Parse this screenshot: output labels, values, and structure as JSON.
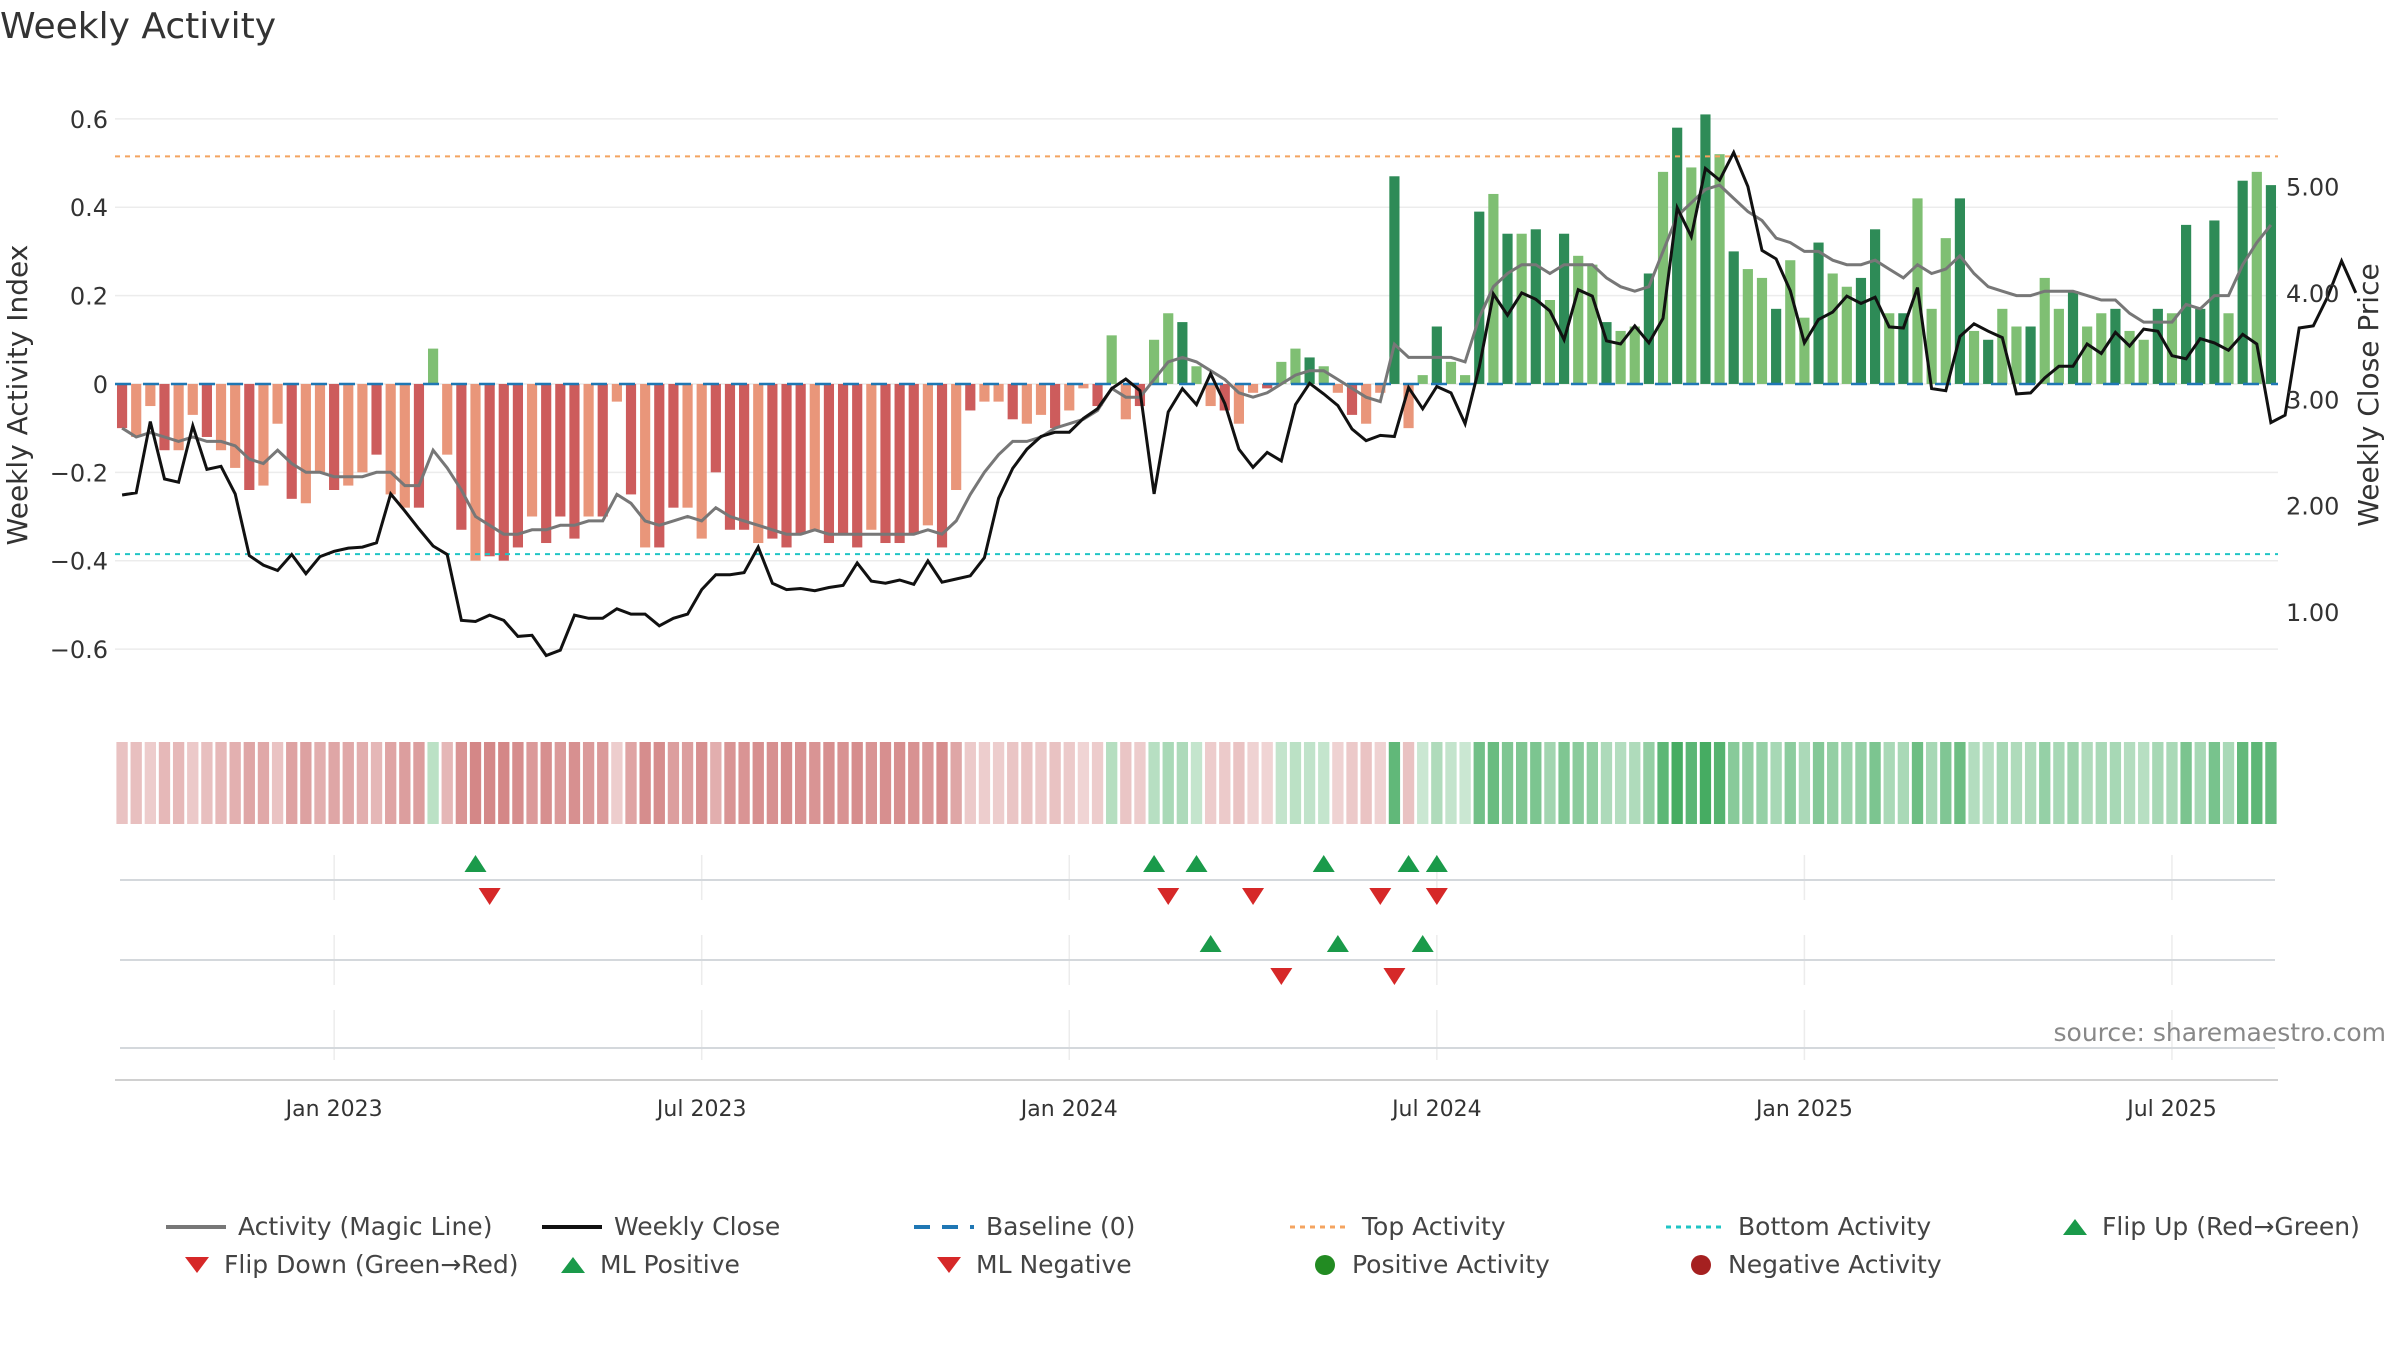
{
  "title": "Weekly Activity",
  "source_note": "source: sharemaestro.com",
  "chart_data": {
    "type": "bar",
    "title": "Weekly Activity",
    "ylabel": "Weekly Activity Index",
    "y2label": "Weekly Close Price",
    "ylim": [
      -0.67,
      0.62
    ],
    "y2lim": [
      0.36,
      5.72
    ],
    "y_ticks": [
      -0.6,
      -0.4,
      -0.2,
      0,
      0.2,
      0.4,
      0.6
    ],
    "y_tick_labels": [
      "−0.6",
      "−0.4",
      "−0.2",
      "0",
      "0.2",
      "0.4",
      "0.6"
    ],
    "y2_ticks": [
      1,
      2,
      3,
      4,
      5
    ],
    "y2_tick_labels": [
      "1.00",
      "2.00",
      "3.00",
      "4.00",
      "5.00"
    ],
    "x_ticks": [
      {
        "label": "Jan 2023",
        "week": 15
      },
      {
        "label": "Jul 2023",
        "week": 41
      },
      {
        "label": "Jan 2024",
        "week": 67
      },
      {
        "label": "Jul 2024",
        "week": 93
      },
      {
        "label": "Jan 2025",
        "week": 119
      },
      {
        "label": "Jul 2025",
        "week": 145
      }
    ],
    "top_activity": 0.515,
    "bottom_activity": -0.385,
    "activity": [
      -0.1,
      -0.12,
      -0.05,
      -0.15,
      -0.15,
      -0.07,
      -0.12,
      -0.15,
      -0.19,
      -0.24,
      -0.23,
      -0.09,
      -0.26,
      -0.27,
      -0.2,
      -0.24,
      -0.23,
      -0.2,
      -0.16,
      -0.25,
      -0.28,
      -0.28,
      0.08,
      -0.16,
      -0.33,
      -0.4,
      -0.39,
      -0.4,
      -0.37,
      -0.3,
      -0.36,
      -0.3,
      -0.35,
      -0.3,
      -0.3,
      -0.04,
      -0.25,
      -0.37,
      -0.37,
      -0.28,
      -0.28,
      -0.35,
      -0.2,
      -0.33,
      -0.33,
      -0.36,
      -0.35,
      -0.37,
      -0.34,
      -0.33,
      -0.36,
      -0.34,
      -0.37,
      -0.33,
      -0.36,
      -0.36,
      -0.34,
      -0.32,
      -0.37,
      -0.24,
      -0.06,
      -0.04,
      -0.04,
      -0.08,
      -0.09,
      -0.07,
      -0.1,
      -0.06,
      -0.01,
      -0.05,
      0.11,
      -0.08,
      -0.05,
      0.1,
      0.16,
      0.14,
      0.04,
      -0.05,
      -0.06,
      -0.09,
      -0.02,
      -0.01,
      0.05,
      0.08,
      0.06,
      0.04,
      -0.02,
      -0.07,
      -0.09,
      -0.02,
      0.47,
      -0.1,
      0.02,
      0.13,
      0.05,
      0.02,
      0.39,
      0.43,
      0.34,
      0.34,
      0.35,
      0.19,
      0.34,
      0.29,
      0.27,
      0.14,
      0.12,
      0.13,
      0.25,
      0.48,
      0.58,
      0.49,
      0.61,
      0.52,
      0.3,
      0.26,
      0.24,
      0.17,
      0.28,
      0.15,
      0.32,
      0.25,
      0.22,
      0.24,
      0.35,
      0.16,
      0.16,
      0.42,
      0.17,
      0.33,
      0.42,
      0.12,
      0.1,
      0.17,
      0.13,
      0.13,
      0.24,
      0.17,
      0.21,
      0.13,
      0.16,
      0.17,
      0.12,
      0.1,
      0.17,
      0.16,
      0.36,
      0.17,
      0.37,
      0.16,
      0.46,
      0.48,
      0.45
    ],
    "magic_line": [
      -0.1,
      -0.12,
      -0.11,
      -0.12,
      -0.13,
      -0.12,
      -0.13,
      -0.13,
      -0.14,
      -0.17,
      -0.18,
      -0.15,
      -0.18,
      -0.2,
      -0.2,
      -0.21,
      -0.21,
      -0.21,
      -0.2,
      -0.2,
      -0.23,
      -0.23,
      -0.15,
      -0.19,
      -0.24,
      -0.3,
      -0.32,
      -0.34,
      -0.34,
      -0.33,
      -0.33,
      -0.32,
      -0.32,
      -0.31,
      -0.31,
      -0.25,
      -0.27,
      -0.31,
      -0.32,
      -0.31,
      -0.3,
      -0.31,
      -0.28,
      -0.3,
      -0.31,
      -0.32,
      -0.33,
      -0.34,
      -0.34,
      -0.33,
      -0.34,
      -0.34,
      -0.34,
      -0.34,
      -0.34,
      -0.34,
      -0.34,
      -0.33,
      -0.34,
      -0.31,
      -0.25,
      -0.2,
      -0.16,
      -0.13,
      -0.13,
      -0.12,
      -0.1,
      -0.09,
      -0.08,
      -0.06,
      -0.01,
      -0.03,
      -0.03,
      0.01,
      0.05,
      0.06,
      0.05,
      0.03,
      0.01,
      -0.02,
      -0.03,
      -0.02,
      0,
      0.02,
      0.03,
      0.03,
      0.01,
      -0.01,
      -0.03,
      -0.04,
      0.09,
      0.06,
      0.06,
      0.06,
      0.06,
      0.05,
      0.15,
      0.22,
      0.25,
      0.27,
      0.27,
      0.25,
      0.27,
      0.27,
      0.27,
      0.24,
      0.22,
      0.21,
      0.22,
      0.3,
      0.38,
      0.41,
      0.44,
      0.45,
      0.42,
      0.39,
      0.37,
      0.33,
      0.32,
      0.3,
      0.3,
      0.28,
      0.27,
      0.27,
      0.28,
      0.26,
      0.24,
      0.27,
      0.25,
      0.26,
      0.29,
      0.25,
      0.22,
      0.21,
      0.2,
      0.2,
      0.21,
      0.21,
      0.21,
      0.2,
      0.19,
      0.19,
      0.16,
      0.14,
      0.14,
      0.14,
      0.18,
      0.17,
      0.2,
      0.2,
      0.27,
      0.32,
      0.36
    ],
    "weekly_close": [
      2.1,
      2.12,
      2.79,
      2.25,
      2.22,
      2.75,
      2.34,
      2.37,
      2.11,
      1.53,
      1.44,
      1.39,
      1.54,
      1.36,
      1.52,
      1.57,
      1.6,
      1.61,
      1.65,
      2.11,
      1.95,
      1.78,
      1.62,
      1.54,
      0.92,
      0.91,
      0.97,
      0.92,
      0.77,
      0.78,
      0.59,
      0.64,
      0.97,
      0.94,
      0.94,
      1.03,
      0.98,
      0.98,
      0.87,
      0.94,
      0.98,
      1.21,
      1.35,
      1.35,
      1.37,
      1.61,
      1.27,
      1.21,
      1.22,
      1.2,
      1.23,
      1.25,
      1.46,
      1.29,
      1.27,
      1.3,
      1.26,
      1.48,
      1.28,
      1.31,
      1.34,
      1.51,
      2.07,
      2.35,
      2.53,
      2.65,
      2.69,
      2.69,
      2.82,
      2.91,
      3.1,
      3.19,
      3.08,
      2.11,
      2.88,
      3.1,
      2.95,
      3.24,
      2.96,
      2.53,
      2.36,
      2.5,
      2.42,
      2.95,
      3.15,
      3.05,
      2.94,
      2.72,
      2.61,
      2.66,
      2.65,
      3.11,
      2.91,
      3.12,
      3.06,
      2.77,
      3.3,
      3.99,
      3.79,
      4.0,
      3.94,
      3.83,
      3.56,
      4.03,
      3.97,
      3.55,
      3.52,
      3.69,
      3.53,
      3.76,
      4.8,
      4.53,
      5.17,
      5.06,
      5.32,
      5.0,
      4.4,
      4.32,
      4.02,
      3.53,
      3.75,
      3.82,
      3.97,
      3.9,
      3.96,
      3.68,
      3.67,
      4.05,
      3.1,
      3.08,
      3.59,
      3.71,
      3.64,
      3.58,
      3.05,
      3.06,
      3.2,
      3.31,
      3.31,
      3.52,
      3.43,
      3.63,
      3.5,
      3.66,
      3.64,
      3.41,
      3.38,
      3.57,
      3.53,
      3.46,
      3.61,
      3.52,
      2.78,
      2.85,
      3.67,
      3.69,
      3.96,
      4.3,
      4.0
    ],
    "flip_up_weeks": [
      25,
      73,
      76,
      85,
      91,
      93
    ],
    "flip_down_weeks": [
      26,
      74,
      80,
      89,
      93
    ],
    "ml_positive_weeks": [
      77,
      86,
      92
    ],
    "ml_negative_weeks": [
      82,
      90
    ],
    "legend": {
      "magic_line": "Activity (Magic Line)",
      "weekly_close": "Weekly Close",
      "baseline": "Baseline (0)",
      "top": "Top Activity",
      "bottom": "Bottom Activity",
      "flip_up": "Flip Up (Red→Green)",
      "flip_down": "Flip Down (Green→Red)",
      "ml_positive": "ML Positive",
      "ml_negative": "ML Negative",
      "positive": "Positive Activity",
      "negative": "Negative Activity"
    },
    "colors": {
      "strong_green": "#2e8b57",
      "light_green": "#7fbf73",
      "strong_red": "#cd5c5c",
      "light_red": "#e9967a",
      "magic_line": "#777777",
      "close_line": "#111111",
      "baseline": "#1f77b4",
      "top": "#f4a460",
      "bottom": "#20c5c5",
      "marker_green": "#1a9a4a",
      "marker_red": "#d62828",
      "positive_dot": "#228b22",
      "negative_dot": "#a52020"
    }
  }
}
